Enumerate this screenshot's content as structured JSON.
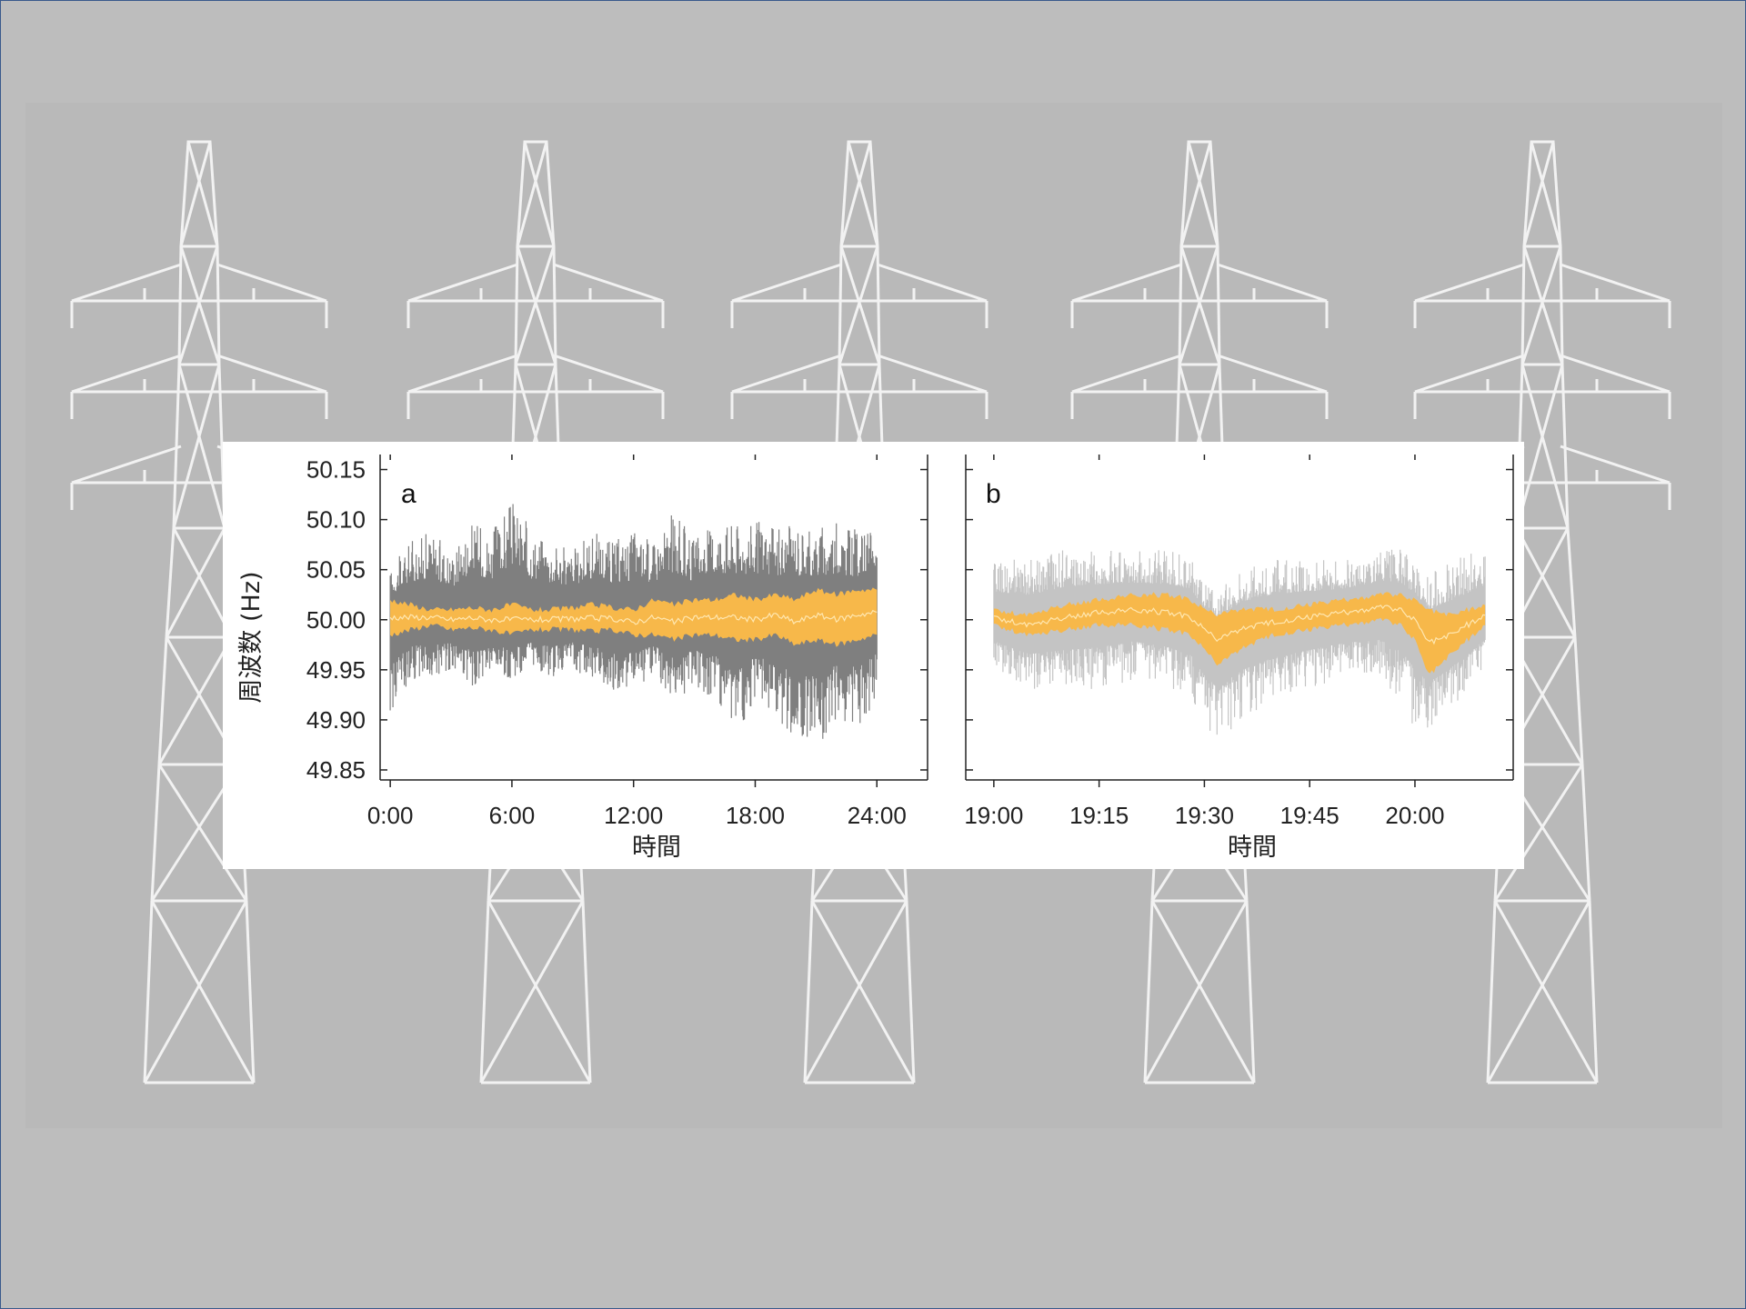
{
  "colors": {
    "background": "#bdbdbd",
    "tower": "#f2f2f2",
    "raw_a": "#7f7f7f",
    "raw_b": "#c4c4c4",
    "band": "#f7b84a",
    "mean_line": "#ffe7b0"
  },
  "chart_data": [
    {
      "type": "area",
      "panel_label": "a",
      "xlabel": "時間",
      "ylabel": "周波数 (Hz)",
      "x_ticks": [
        "0:00",
        "6:00",
        "12:00",
        "18:00",
        "24:00"
      ],
      "x_range_hours": [
        -0.5,
        26.5
      ],
      "y_ticks": [
        "50.15",
        "50.10",
        "50.05",
        "50.00",
        "49.95",
        "49.90",
        "49.85"
      ],
      "ylim": [
        49.84,
        50.165
      ],
      "series": [
        {
          "name": "",
          "x_hours": [
            0,
            1,
            2,
            3,
            4,
            5,
            6,
            7,
            8,
            9,
            10,
            11,
            12,
            13,
            14,
            15,
            16,
            17,
            18,
            19,
            20,
            21,
            22,
            23,
            24
          ],
          "max": [
            50.05,
            50.08,
            50.09,
            50.07,
            50.1,
            50.09,
            50.12,
            50.09,
            50.08,
            50.07,
            50.09,
            50.08,
            50.09,
            50.08,
            50.11,
            50.08,
            50.1,
            50.1,
            50.1,
            50.09,
            50.1,
            50.09,
            50.1,
            50.09,
            50.09
          ],
          "min": [
            49.9,
            49.94,
            49.94,
            49.95,
            49.93,
            49.94,
            49.94,
            49.95,
            49.94,
            49.95,
            49.94,
            49.93,
            49.93,
            49.94,
            49.92,
            49.93,
            49.92,
            49.88,
            49.92,
            49.9,
            49.88,
            49.87,
            49.9,
            49.89,
            49.92
          ],
          "band_upper": [
            50.02,
            50.015,
            50.01,
            50.01,
            50.012,
            50.01,
            50.015,
            50.01,
            50.01,
            50.012,
            50.015,
            50.012,
            50.01,
            50.02,
            50.015,
            50.02,
            50.02,
            50.025,
            50.02,
            50.025,
            50.02,
            50.03,
            50.025,
            50.03,
            50.03
          ],
          "band_lower": [
            49.985,
            49.99,
            49.995,
            49.99,
            49.992,
            49.99,
            49.985,
            49.99,
            49.99,
            49.99,
            49.988,
            49.99,
            49.985,
            49.985,
            49.98,
            49.985,
            49.985,
            49.98,
            49.98,
            49.985,
            49.975,
            49.98,
            49.975,
            49.98,
            49.985
          ]
        }
      ]
    },
    {
      "type": "area",
      "panel_label": "b",
      "xlabel": "時間",
      "ylabel": "",
      "x_ticks": [
        "19:00",
        "19:15",
        "19:30",
        "19:45",
        "20:00"
      ],
      "x_range_minutes": [
        -4,
        74
      ],
      "y_ticks": [
        "50.15",
        "50.10",
        "50.05",
        "50.00",
        "49.95",
        "49.90",
        "49.85"
      ],
      "ylim": [
        49.84,
        50.165
      ],
      "series": [
        {
          "name": "",
          "x_minutes": [
            0,
            5,
            10,
            15,
            20,
            25,
            28,
            30,
            32,
            35,
            40,
            45,
            50,
            55,
            58,
            60,
            62,
            65,
            70
          ],
          "max": [
            50.06,
            50.06,
            50.07,
            50.07,
            50.07,
            50.07,
            50.065,
            50.04,
            50.03,
            50.05,
            50.06,
            50.06,
            50.06,
            50.07,
            50.07,
            50.06,
            50.05,
            50.06,
            50.07
          ],
          "min": [
            49.95,
            49.93,
            49.93,
            49.93,
            49.94,
            49.93,
            49.92,
            49.89,
            49.87,
            49.9,
            49.92,
            49.93,
            49.94,
            49.94,
            49.92,
            49.89,
            49.89,
            49.91,
            49.95
          ],
          "band_upper": [
            50.01,
            50.005,
            50.015,
            50.02,
            50.025,
            50.025,
            50.02,
            50.01,
            50.005,
            50.01,
            50.01,
            50.015,
            50.02,
            50.025,
            50.025,
            50.02,
            50.01,
            50.005,
            50.015
          ],
          "band_lower": [
            49.995,
            49.985,
            49.99,
            49.995,
            49.995,
            49.99,
            49.985,
            49.97,
            49.955,
            49.97,
            49.985,
            49.99,
            49.995,
            50.0,
            49.995,
            49.98,
            49.945,
            49.965,
            49.995
          ]
        }
      ]
    }
  ]
}
